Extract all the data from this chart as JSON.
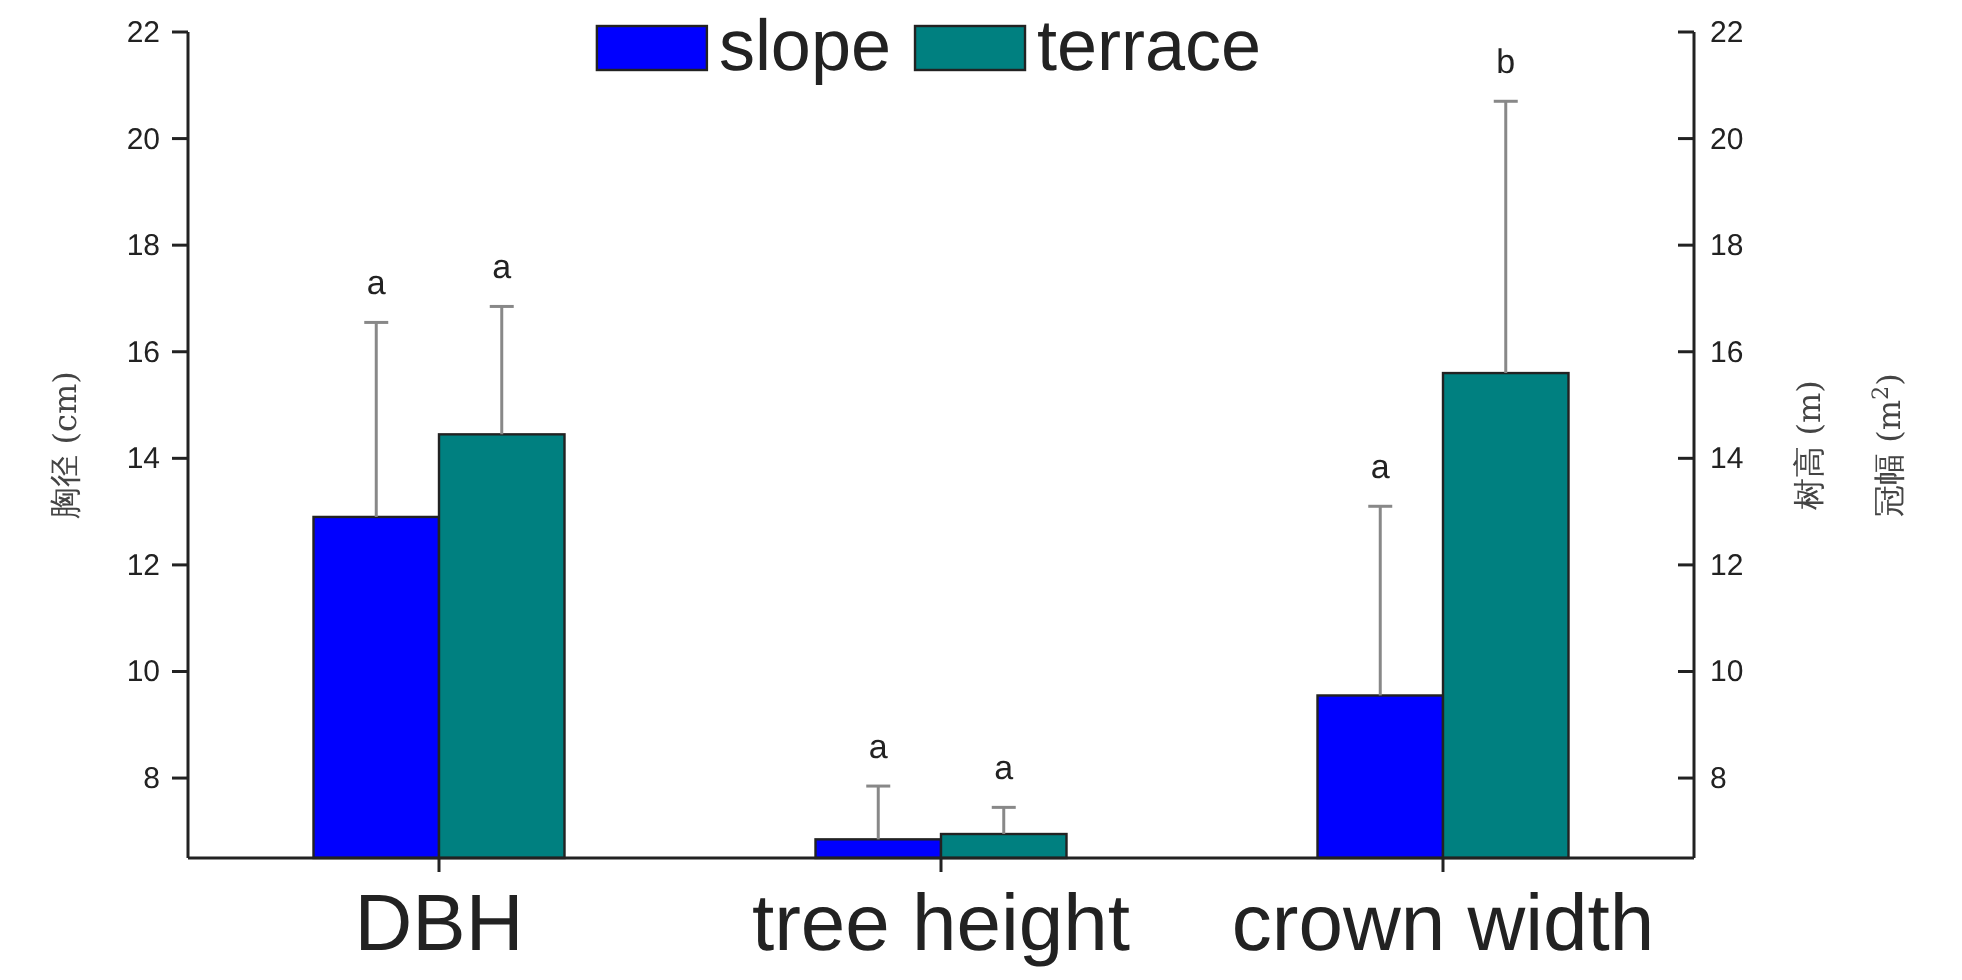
{
  "chart_data": {
    "type": "bar",
    "ylabel": "胸径 (cm)",
    "y2label": "树高 (m)\n冠幅 (m$^{2}$)",
    "categories": [
      "DBH",
      "tree height",
      "crown width"
    ],
    "series": [
      {
        "name": "slope",
        "color": "#0000ff",
        "values": [
          12.9,
          6.85,
          9.55
        ],
        "errors": [
          [
            12.9,
            16.55
          ],
          [
            6.85,
            7.85
          ],
          [
            9.55,
            13.1
          ]
        ]
      },
      {
        "name": "terrace",
        "color": "#008080",
        "values": [
          14.45,
          6.95,
          15.6
        ],
        "errors": [
          [
            14.45,
            16.85
          ],
          [
            6.95,
            7.45
          ],
          [
            15.6,
            20.7
          ]
        ]
      }
    ],
    "ylim": [
      6.5,
      22
    ],
    "yticks": [
      8,
      10,
      12,
      14,
      16,
      18,
      20,
      22
    ],
    "y2lim": [
      6.5,
      22
    ],
    "y2ticks": [
      8,
      10,
      12,
      14,
      16,
      18,
      20,
      22
    ],
    "annotations": [
      "a",
      "a",
      "a",
      "a",
      "a",
      "b"
    ],
    "legend": "top",
    "grid": false
  }
}
